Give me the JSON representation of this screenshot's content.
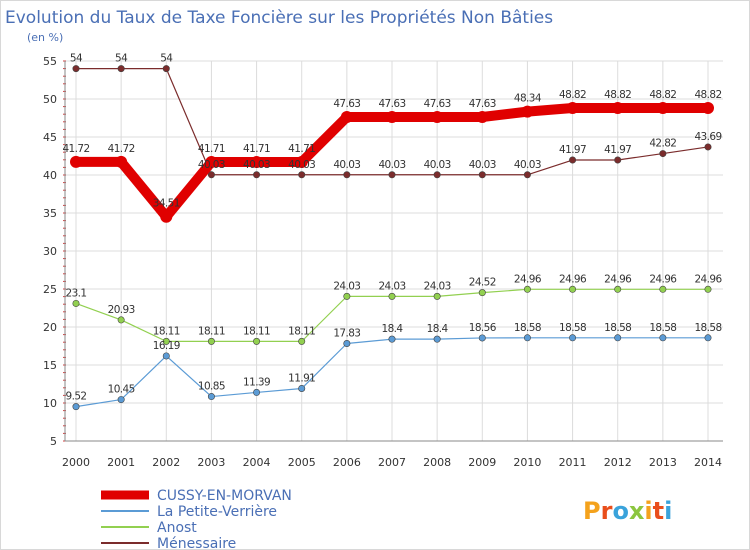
{
  "chart_data": {
    "type": "line",
    "title": "Evolution du Taux de Taxe Foncière sur les Propriétés Non Bâties",
    "unit_label": "(en %)",
    "x": [
      "2000",
      "2001",
      "2002",
      "2003",
      "2004",
      "2005",
      "2006",
      "2007",
      "2008",
      "2009",
      "2010",
      "2011",
      "2012",
      "2013",
      "2014"
    ],
    "ylim": [
      5,
      55
    ],
    "yticks": [
      5,
      10,
      15,
      20,
      25,
      30,
      35,
      40,
      45,
      50,
      55
    ],
    "grid": true,
    "series": [
      {
        "name": "CUSSY-EN-MORVAN",
        "color": "#e00000",
        "values": [
          41.72,
          41.72,
          34.51,
          41.71,
          41.71,
          41.71,
          47.63,
          47.63,
          47.63,
          47.63,
          48.34,
          48.82,
          48.82,
          48.82,
          48.82
        ],
        "labels": [
          "41.72",
          "41.72",
          "34.51",
          "41.71",
          "41.71",
          "41.71",
          "47.63",
          "47.63",
          "47.63",
          "47.63",
          "48.34",
          "48.82",
          "48.82",
          "48.82",
          "48.82"
        ]
      },
      {
        "name": "La Petite-Verrière",
        "color": "#5b9bd5",
        "values": [
          9.52,
          10.45,
          16.19,
          10.85,
          11.39,
          11.91,
          17.83,
          18.4,
          18.4,
          18.56,
          18.58,
          18.58,
          18.58,
          18.58,
          18.58
        ],
        "labels": [
          "9.52",
          "10.45",
          "16.19",
          "10.85",
          "11.39",
          "11.91",
          "17.83",
          "18.4",
          "18.4",
          "18.56",
          "18.58",
          "18.58",
          "18.58",
          "18.58",
          "18.58"
        ]
      },
      {
        "name": "Anost",
        "color": "#92d050",
        "values": [
          23.1,
          20.93,
          18.11,
          18.11,
          18.11,
          18.11,
          24.03,
          24.03,
          24.03,
          24.52,
          24.96,
          24.96,
          24.96,
          24.96,
          24.96
        ],
        "labels": [
          "23.1",
          "20.93",
          "18.11",
          "18.11",
          "18.11",
          "18.11",
          "24.03",
          "24.03",
          "24.03",
          "24.52",
          "24.96",
          "24.96",
          "24.96",
          "24.96",
          "24.96"
        ]
      },
      {
        "name": "Ménessaire",
        "color": "#7b2c2c",
        "values": [
          54,
          54,
          54,
          40.03,
          40.03,
          40.03,
          40.03,
          40.03,
          40.03,
          40.03,
          40.03,
          41.97,
          41.97,
          42.82,
          43.69
        ],
        "labels": [
          "54",
          "54",
          "54",
          "40.03",
          "40.03",
          "40.03",
          "40.03",
          "40.03",
          "40.03",
          "40.03",
          "40.03",
          "41.97",
          "41.97",
          "42.82",
          "43.69"
        ]
      }
    ]
  },
  "logo": {
    "text": "Proxiti",
    "letters": [
      "P",
      "r",
      "o",
      "x",
      "i",
      "t",
      "i"
    ],
    "colors": [
      "#f4a21c",
      "#e94e1b",
      "#3aa3db",
      "#8cc63f",
      "#f4a21c",
      "#e94e1b",
      "#3aa3db"
    ]
  }
}
